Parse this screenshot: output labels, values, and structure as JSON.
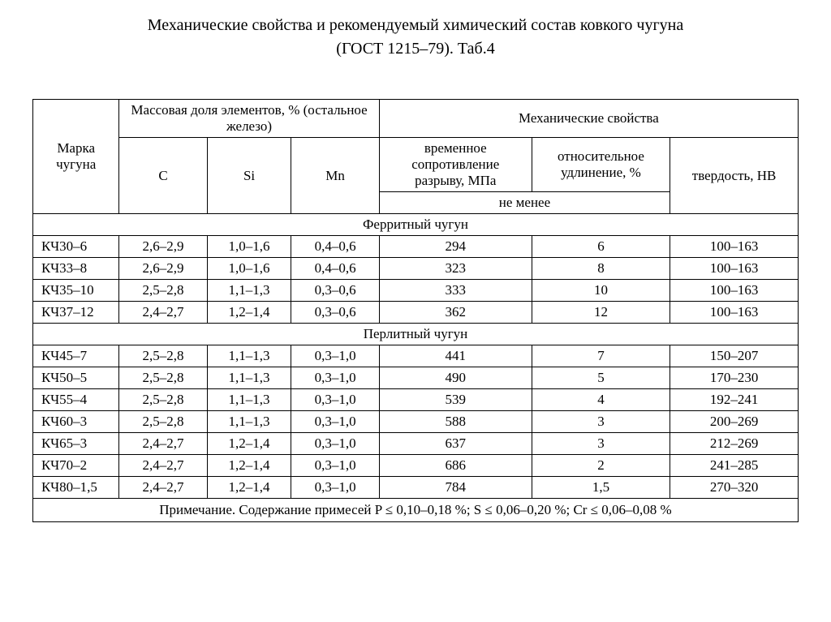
{
  "title_line1": "Механические свойства и рекомендуемый химический состав ковкого чугуна",
  "title_line2": "(ГОСТ 1215–79). Таб.4",
  "headers": {
    "grade": "Марка чугуна",
    "mass_fraction": "Массовая доля элементов, % (остальное железо)",
    "mech_props": "Механические свойства",
    "c": "C",
    "si": "Si",
    "mn": "Mn",
    "tensile": "временное сопротивление разрыву, МПа",
    "elongation": "относительное удлинение, %",
    "hardness": "твердость, HB",
    "not_less": "не менее"
  },
  "sections": {
    "ferritic": "Ферритный чугун",
    "perlitic": "Перлитный чугун"
  },
  "ferritic_rows": [
    {
      "grade": "КЧ30–6",
      "c": "2,6–2,9",
      "si": "1,0–1,6",
      "mn": "0,4–0,6",
      "tensile": "294",
      "elong": "6",
      "hb": "100–163"
    },
    {
      "grade": "КЧ33–8",
      "c": "2,6–2,9",
      "si": "1,0–1,6",
      "mn": "0,4–0,6",
      "tensile": "323",
      "elong": "8",
      "hb": "100–163"
    },
    {
      "grade": "КЧ35–10",
      "c": "2,5–2,8",
      "si": "1,1–1,3",
      "mn": "0,3–0,6",
      "tensile": "333",
      "elong": "10",
      "hb": "100–163"
    },
    {
      "grade": "КЧ37–12",
      "c": "2,4–2,7",
      "si": "1,2–1,4",
      "mn": "0,3–0,6",
      "tensile": "362",
      "elong": "12",
      "hb": "100–163"
    }
  ],
  "perlitic_rows": [
    {
      "grade": "КЧ45–7",
      "c": "2,5–2,8",
      "si": "1,1–1,3",
      "mn": "0,3–1,0",
      "tensile": "441",
      "elong": "7",
      "hb": "150–207"
    },
    {
      "grade": "КЧ50–5",
      "c": "2,5–2,8",
      "si": "1,1–1,3",
      "mn": "0,3–1,0",
      "tensile": "490",
      "elong": "5",
      "hb": "170–230"
    },
    {
      "grade": "КЧ55–4",
      "c": "2,5–2,8",
      "si": "1,1–1,3",
      "mn": "0,3–1,0",
      "tensile": "539",
      "elong": "4",
      "hb": "192–241"
    },
    {
      "grade": "КЧ60–3",
      "c": "2,5–2,8",
      "si": "1,1–1,3",
      "mn": "0,3–1,0",
      "tensile": "588",
      "elong": "3",
      "hb": "200–269"
    },
    {
      "grade": "КЧ65–3",
      "c": "2,4–2,7",
      "si": "1,2–1,4",
      "mn": "0,3–1,0",
      "tensile": "637",
      "elong": "3",
      "hb": "212–269"
    },
    {
      "grade": "КЧ70–2",
      "c": "2,4–2,7",
      "si": "1,2–1,4",
      "mn": "0,3–1,0",
      "tensile": "686",
      "elong": "2",
      "hb": "241–285"
    },
    {
      "grade": "КЧ80–1,5",
      "c": "2,4–2,7",
      "si": "1,2–1,4",
      "mn": "0,3–1,0",
      "tensile": "784",
      "elong": "1,5",
      "hb": "270–320"
    }
  ],
  "note": "Примечание. Содержание примесей P ≤ 0,10–0,18 %; S ≤ 0,06–0,20 %; Cr ≤ 0,06–0,08 %",
  "style": {
    "background_color": "#ffffff",
    "text_color": "#000000",
    "border_color": "#000000",
    "font_family": "Times New Roman",
    "title_fontsize": 20,
    "table_fontsize": 17
  }
}
